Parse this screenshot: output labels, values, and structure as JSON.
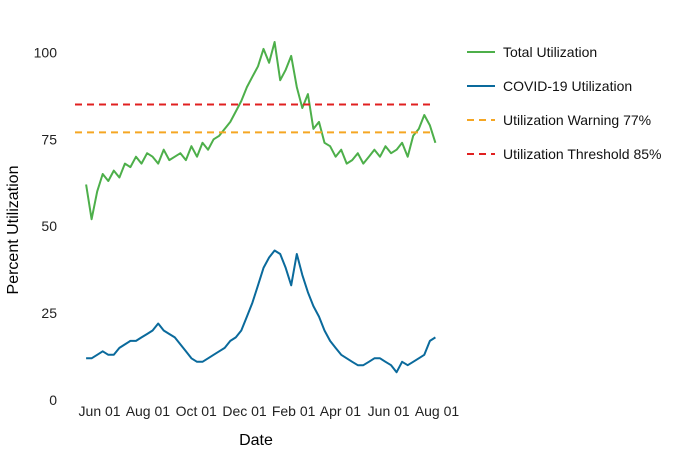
{
  "chart_data": {
    "type": "line",
    "title": "",
    "xlabel": "Date",
    "ylabel": "Percent Utilization",
    "x_tick_labels": [
      "Jun 01",
      "Aug 01",
      "Oct 01",
      "Dec 01",
      "Feb 01",
      "Apr 01",
      "Jun 01",
      "Aug 01"
    ],
    "x_tick_dates": [
      "2020-06-01",
      "2020-08-01",
      "2020-10-01",
      "2020-12-01",
      "2021-02-01",
      "2021-04-01",
      "2021-06-01",
      "2021-08-01"
    ],
    "xlim": [
      "2020-05-01",
      "2021-08-01"
    ],
    "y_ticks": [
      "0",
      "25",
      "50",
      "75",
      "100"
    ],
    "y_tick_values": [
      0,
      25,
      50,
      75,
      100
    ],
    "ylim": [
      0,
      105
    ],
    "grid": false,
    "legend_position": "right",
    "series": [
      {
        "name": "Total Utilization",
        "color": "#4daf4a",
        "style": "solid",
        "x": [
          "2020-05-15",
          "2020-05-22",
          "2020-05-29",
          "2020-06-05",
          "2020-06-12",
          "2020-06-19",
          "2020-06-26",
          "2020-07-03",
          "2020-07-10",
          "2020-07-17",
          "2020-07-24",
          "2020-07-31",
          "2020-08-07",
          "2020-08-14",
          "2020-08-21",
          "2020-08-28",
          "2020-09-04",
          "2020-09-11",
          "2020-09-18",
          "2020-09-25",
          "2020-10-02",
          "2020-10-09",
          "2020-10-16",
          "2020-10-23",
          "2020-10-30",
          "2020-11-06",
          "2020-11-13",
          "2020-11-20",
          "2020-11-27",
          "2020-12-04",
          "2020-12-11",
          "2020-12-18",
          "2020-12-25",
          "2021-01-01",
          "2021-01-08",
          "2021-01-15",
          "2021-01-22",
          "2021-01-29",
          "2021-02-05",
          "2021-02-12",
          "2021-02-19",
          "2021-02-26",
          "2021-03-05",
          "2021-03-12",
          "2021-03-19",
          "2021-03-26",
          "2021-04-02",
          "2021-04-09",
          "2021-04-16",
          "2021-04-23",
          "2021-04-30",
          "2021-05-07",
          "2021-05-14",
          "2021-05-21",
          "2021-05-28",
          "2021-06-04",
          "2021-06-11",
          "2021-06-18",
          "2021-06-25",
          "2021-07-02",
          "2021-07-09",
          "2021-07-16",
          "2021-07-23",
          "2021-07-30"
        ],
        "values": [
          62,
          52,
          60,
          65,
          63,
          66,
          64,
          68,
          67,
          70,
          68,
          71,
          70,
          68,
          72,
          69,
          70,
          71,
          69,
          73,
          70,
          74,
          72,
          75,
          76,
          78,
          80,
          83,
          86,
          90,
          93,
          96,
          101,
          97,
          103,
          92,
          95,
          99,
          90,
          84,
          88,
          78,
          80,
          74,
          73,
          70,
          72,
          68,
          69,
          71,
          68,
          70,
          72,
          70,
          73,
          71,
          72,
          74,
          70,
          76,
          78,
          82,
          79,
          74
        ]
      },
      {
        "name": "COVID-19 Utilization",
        "color": "#0a6a9c",
        "style": "solid",
        "x": [
          "2020-05-15",
          "2020-05-22",
          "2020-05-29",
          "2020-06-05",
          "2020-06-12",
          "2020-06-19",
          "2020-06-26",
          "2020-07-03",
          "2020-07-10",
          "2020-07-17",
          "2020-07-24",
          "2020-07-31",
          "2020-08-07",
          "2020-08-14",
          "2020-08-21",
          "2020-08-28",
          "2020-09-04",
          "2020-09-11",
          "2020-09-18",
          "2020-09-25",
          "2020-10-02",
          "2020-10-09",
          "2020-10-16",
          "2020-10-23",
          "2020-10-30",
          "2020-11-06",
          "2020-11-13",
          "2020-11-20",
          "2020-11-27",
          "2020-12-04",
          "2020-12-11",
          "2020-12-18",
          "2020-12-25",
          "2021-01-01",
          "2021-01-08",
          "2021-01-15",
          "2021-01-22",
          "2021-01-29",
          "2021-02-05",
          "2021-02-12",
          "2021-02-19",
          "2021-02-26",
          "2021-03-05",
          "2021-03-12",
          "2021-03-19",
          "2021-03-26",
          "2021-04-02",
          "2021-04-09",
          "2021-04-16",
          "2021-04-23",
          "2021-04-30",
          "2021-05-07",
          "2021-05-14",
          "2021-05-21",
          "2021-05-28",
          "2021-06-04",
          "2021-06-11",
          "2021-06-18",
          "2021-06-25",
          "2021-07-02",
          "2021-07-09",
          "2021-07-16",
          "2021-07-23",
          "2021-07-30"
        ],
        "values": [
          12,
          12,
          13,
          14,
          13,
          13,
          15,
          16,
          17,
          17,
          18,
          19,
          20,
          22,
          20,
          19,
          18,
          16,
          14,
          12,
          11,
          11,
          12,
          13,
          14,
          15,
          17,
          18,
          20,
          24,
          28,
          33,
          38,
          41,
          43,
          42,
          38,
          33,
          42,
          36,
          31,
          27,
          24,
          20,
          17,
          15,
          13,
          12,
          11,
          10,
          10,
          11,
          12,
          12,
          11,
          10,
          8,
          11,
          10,
          11,
          12,
          13,
          17,
          18
        ]
      },
      {
        "name": "Utilization Warning 77%",
        "color": "#f5a623",
        "style": "dashed",
        "constant": 77
      },
      {
        "name": "Utilization Threshold 85%",
        "color": "#e02020",
        "style": "dashed",
        "constant": 85
      }
    ]
  }
}
